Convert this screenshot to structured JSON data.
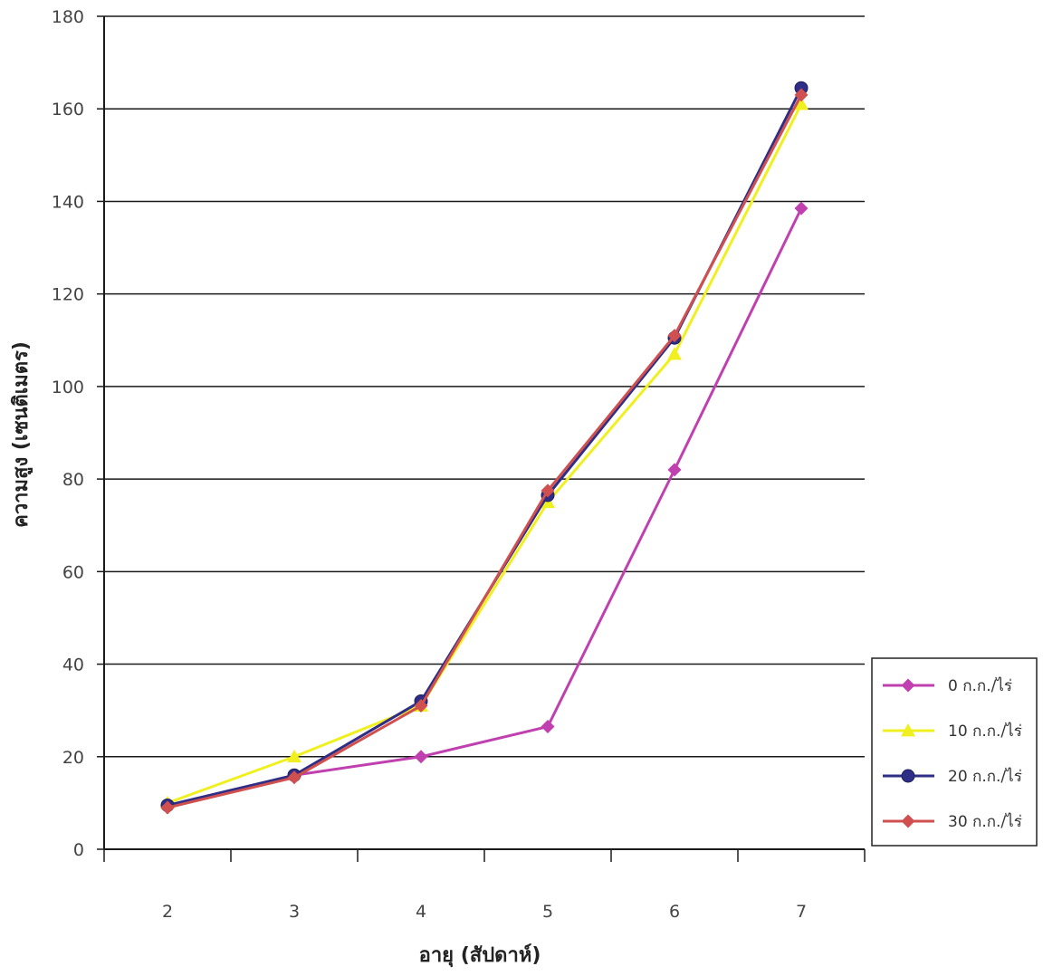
{
  "chart_data": {
    "type": "line",
    "title": "",
    "xlabel": "อายุ (สัปดาห์)",
    "ylabel": "ความสูง (เซนติเมตร)",
    "x": [
      2,
      3,
      4,
      5,
      6,
      7
    ],
    "x_tick_labels": [
      "2",
      "3",
      "4",
      "5",
      "6",
      "7"
    ],
    "y_tick_labels": [
      "0",
      "20",
      "40",
      "60",
      "80",
      "100",
      "120",
      "140",
      "160",
      "180"
    ],
    "ylim": [
      0,
      180
    ],
    "grid": true,
    "legend_position": "bottom-right",
    "series": [
      {
        "name": "0 ก.ก./ไร่",
        "values": [
          9,
          16,
          20,
          26.5,
          82,
          138.5
        ],
        "color": "#c040b0",
        "marker": "diamond"
      },
      {
        "name": "10 ก.ก./ไร่",
        "values": [
          10,
          20,
          31,
          75,
          107,
          161
        ],
        "color": "#f0f020",
        "marker": "triangle"
      },
      {
        "name": "20 ก.ก./ไร่",
        "values": [
          9.5,
          16,
          32,
          76.5,
          110.5,
          164.5
        ],
        "color": "#2e2e86",
        "marker": "circle"
      },
      {
        "name": "30 ก.ก./ไร่",
        "values": [
          9,
          15.5,
          31,
          77.5,
          111,
          163
        ],
        "color": "#d05050",
        "marker": "diamond"
      }
    ]
  }
}
